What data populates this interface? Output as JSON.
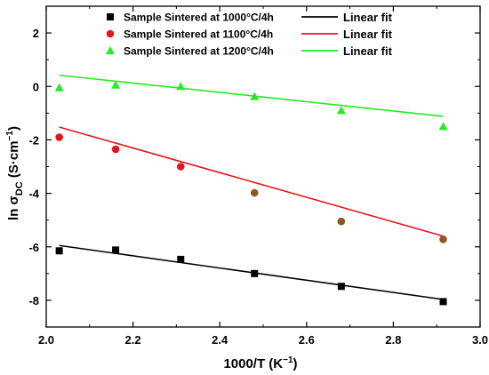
{
  "chart_data": {
    "type": "scatter",
    "xlabel": "1000/T  (K",
    "xlabel_sup": "−1",
    "ylabel_main": "ln σ",
    "ylabel_sub": "DC",
    "ylabel_unit": " (S·cm",
    "ylabel_unit_sup": "−1",
    "ylabel_close": ")",
    "xlim": [
      2.0,
      3.0
    ],
    "ylim": [
      -9,
      3
    ],
    "x_ticks": [
      2.0,
      2.2,
      2.4,
      2.6,
      2.8,
      3.0
    ],
    "x_tick_labels": [
      "2.0",
      "2.2",
      "2.4",
      "2.6",
      "2.8",
      "3.0"
    ],
    "y_ticks": [
      -8,
      -6,
      -4,
      -2,
      0,
      2
    ],
    "y_tick_labels": [
      "-8",
      "-6",
      "-4",
      "-2",
      "0",
      "2"
    ],
    "grid": false,
    "legend_position": "top",
    "series": [
      {
        "name": "Sample Sintered at 1000°C/4h",
        "marker": "square",
        "color": "#000000",
        "x": [
          2.03,
          2.16,
          2.31,
          2.48,
          2.68,
          2.915
        ],
        "y": [
          -6.15,
          -6.12,
          -6.47,
          -7.0,
          -7.48,
          -8.05
        ],
        "fit_name": "Linear fit",
        "fit_color": "#000000",
        "fit_x": [
          2.03,
          2.915
        ],
        "fit_y": [
          -5.95,
          -7.97
        ]
      },
      {
        "name": "Sample Sintered at 1100°C/4h",
        "marker": "circle",
        "color": "#e8141c",
        "x": [
          2.03,
          2.16,
          2.31,
          2.48,
          2.68,
          2.915
        ],
        "y": [
          -1.9,
          -2.35,
          -3.0,
          -3.98,
          -5.05,
          -5.72
        ],
        "point_colors": [
          "#e8141c",
          "#e8141c",
          "#e8141c",
          "#8a5a1e",
          "#8a5a1e",
          "#8a5a1e"
        ],
        "fit_name": "Linear fit",
        "fit_color": "#e8141c",
        "fit_x": [
          2.03,
          2.915
        ],
        "fit_y": [
          -1.52,
          -5.6
        ]
      },
      {
        "name": "Sample Sintered at 1200°C/4h",
        "marker": "triangle",
        "color": "#22ee22",
        "x": [
          2.03,
          2.16,
          2.31,
          2.48,
          2.68,
          2.915
        ],
        "y": [
          -0.05,
          0.05,
          0.0,
          -0.38,
          -0.9,
          -1.5
        ],
        "fit_name": "Linear fit",
        "fit_color": "#22ee22",
        "fit_x": [
          2.03,
          2.915
        ],
        "fit_y": [
          0.42,
          -1.12
        ]
      }
    ]
  }
}
